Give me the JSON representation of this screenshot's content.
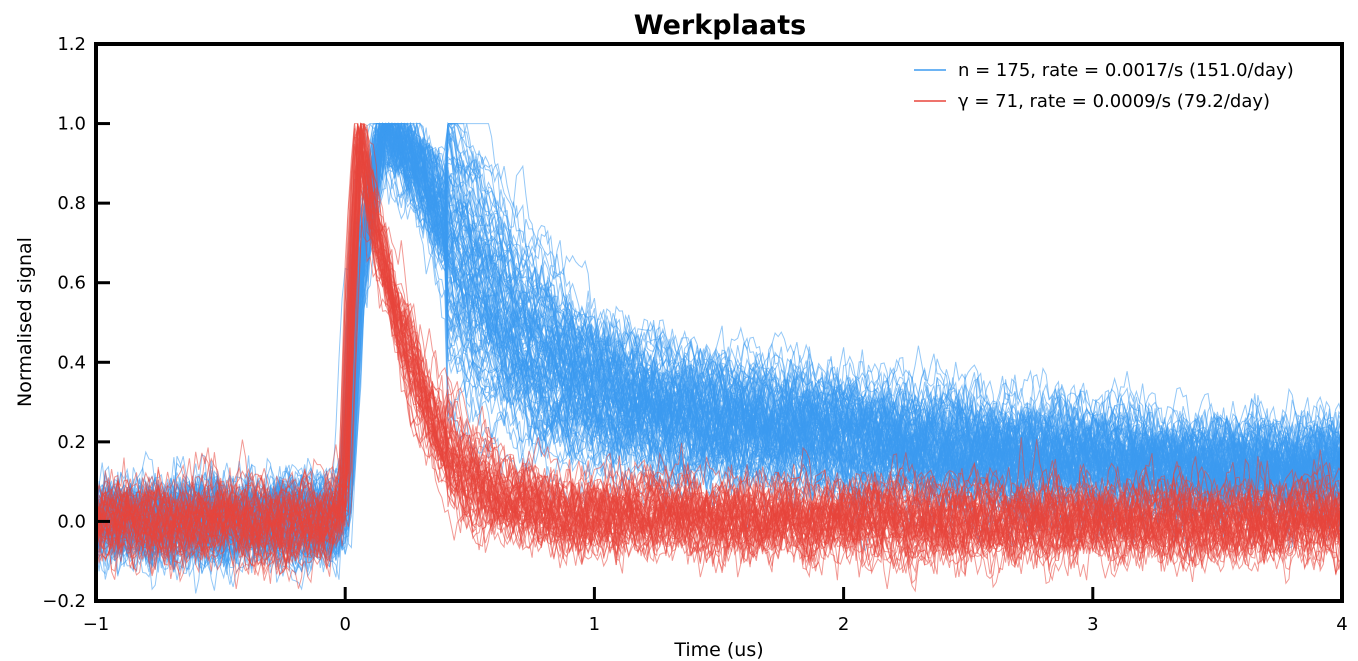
{
  "chart_data": {
    "type": "line",
    "title": "Werkplaats",
    "xlabel": "Time (us)",
    "ylabel": "Normalised signal",
    "xlim": [
      -1,
      4
    ],
    "ylim": [
      -0.2,
      1.2
    ],
    "x_ticks": [
      -1,
      0,
      1,
      2,
      3,
      4
    ],
    "x_tick_labels": [
      "−1",
      "0",
      "1",
      "2",
      "3",
      "4"
    ],
    "y_ticks": [
      -0.2,
      0.0,
      0.2,
      0.4,
      0.6,
      0.8,
      1.0,
      1.2
    ],
    "y_tick_labels": [
      "−0.2",
      "0.0",
      "0.2",
      "0.4",
      "0.6",
      "0.8",
      "1.0",
      "1.2"
    ],
    "grid": false,
    "legend_position": "top-right",
    "series": [
      {
        "name": "n = 175,   rate = 0.0017/s  (151.0/day)",
        "color": "#3d9bf0",
        "trace_count": 175,
        "mean_pulse": {
          "x": [
            -1.0,
            -0.5,
            -0.05,
            0.0,
            0.05,
            0.15,
            0.3,
            0.5,
            0.75,
            1.0,
            1.5,
            2.0,
            2.5,
            3.0,
            3.5,
            4.0
          ],
          "y": [
            0.0,
            0.0,
            0.0,
            0.05,
            0.6,
            1.0,
            0.88,
            0.62,
            0.42,
            0.32,
            0.25,
            0.21,
            0.17,
            0.15,
            0.13,
            0.12
          ]
        }
      },
      {
        "name": "γ = 71,   rate = 0.0009/s  (79.2/day)",
        "color": "#e8453c",
        "trace_count": 71,
        "mean_pulse": {
          "x": [
            -1.0,
            -0.5,
            -0.05,
            0.0,
            0.03,
            0.06,
            0.1,
            0.2,
            0.3,
            0.4,
            0.6,
            0.8,
            1.0,
            1.5,
            2.0,
            3.0,
            4.0
          ],
          "y": [
            0.0,
            0.0,
            0.0,
            0.05,
            0.6,
            1.0,
            0.8,
            0.55,
            0.35,
            0.2,
            0.07,
            0.03,
            0.02,
            0.01,
            0.0,
            0.0,
            0.0
          ]
        }
      }
    ]
  }
}
